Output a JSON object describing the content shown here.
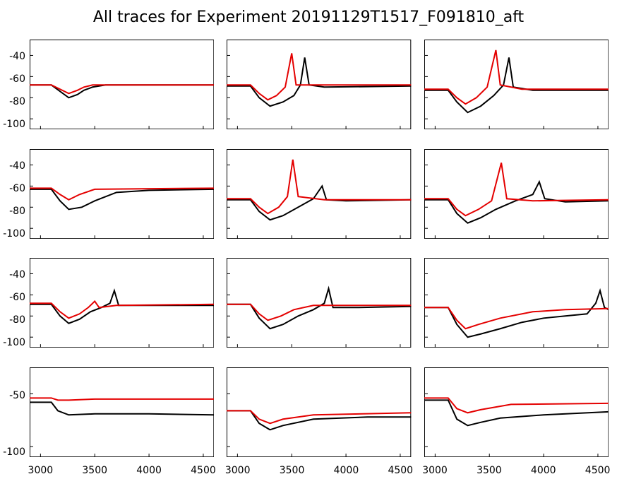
{
  "title": "All traces for Experiment 20191129T1517_F091810_aft",
  "title_fontsize": 22,
  "background_color": "#ffffff",
  "axis_color": "#000000",
  "line_width": 2,
  "colors": {
    "trace_black": "#000000",
    "trace_red": "#e40000"
  },
  "grid": {
    "rows": 4,
    "cols": 3,
    "col_gap": 18,
    "row_gap": 18
  },
  "x_axis": {
    "lim": [
      2900,
      4600
    ],
    "ticks": [
      3000,
      3500,
      4000,
      4500
    ],
    "label_fontsize": 14,
    "show_for_rows": [
      3
    ]
  },
  "y_axis": {
    "show_for_cols": [
      0
    ],
    "label_fontsize": 14,
    "per_row": [
      {
        "lim": [
          -110,
          -25
        ],
        "ticks": [
          -40,
          -60,
          -80,
          -100
        ]
      },
      {
        "lim": [
          -110,
          -25
        ],
        "ticks": [
          -40,
          -60,
          -80,
          -100
        ]
      },
      {
        "lim": [
          -110,
          -25
        ],
        "ticks": [
          -40,
          -60,
          -80,
          -100
        ]
      },
      {
        "lim": [
          -110,
          -25
        ],
        "ticks": [
          -50,
          -100
        ]
      }
    ]
  },
  "panels": [
    {
      "row": 0,
      "col": 0,
      "black": [
        [
          2900,
          -68
        ],
        [
          3100,
          -68
        ],
        [
          3180,
          -74
        ],
        [
          3260,
          -80
        ],
        [
          3340,
          -77
        ],
        [
          3400,
          -73
        ],
        [
          3480,
          -70
        ],
        [
          3600,
          -68
        ],
        [
          4000,
          -68
        ],
        [
          4600,
          -68
        ]
      ],
      "red": [
        [
          2900,
          -68
        ],
        [
          3100,
          -68
        ],
        [
          3180,
          -72
        ],
        [
          3260,
          -76
        ],
        [
          3340,
          -73
        ],
        [
          3400,
          -70
        ],
        [
          3480,
          -68
        ],
        [
          3700,
          -68
        ],
        [
          4600,
          -68
        ]
      ]
    },
    {
      "row": 0,
      "col": 1,
      "black": [
        [
          2900,
          -69
        ],
        [
          3120,
          -69
        ],
        [
          3200,
          -80
        ],
        [
          3300,
          -88
        ],
        [
          3420,
          -84
        ],
        [
          3520,
          -78
        ],
        [
          3580,
          -68
        ],
        [
          3620,
          -42
        ],
        [
          3660,
          -68
        ],
        [
          3800,
          -70
        ],
        [
          4600,
          -69
        ]
      ],
      "red": [
        [
          2900,
          -68
        ],
        [
          3120,
          -68
        ],
        [
          3200,
          -76
        ],
        [
          3280,
          -82
        ],
        [
          3360,
          -78
        ],
        [
          3440,
          -70
        ],
        [
          3500,
          -38
        ],
        [
          3540,
          -68
        ],
        [
          3700,
          -68
        ],
        [
          4600,
          -68
        ]
      ]
    },
    {
      "row": 0,
      "col": 2,
      "black": [
        [
          2900,
          -73
        ],
        [
          3120,
          -73
        ],
        [
          3200,
          -84
        ],
        [
          3300,
          -94
        ],
        [
          3420,
          -88
        ],
        [
          3540,
          -78
        ],
        [
          3630,
          -68
        ],
        [
          3680,
          -42
        ],
        [
          3720,
          -70
        ],
        [
          3900,
          -73
        ],
        [
          4600,
          -73
        ]
      ],
      "red": [
        [
          2900,
          -72
        ],
        [
          3120,
          -72
        ],
        [
          3200,
          -80
        ],
        [
          3280,
          -86
        ],
        [
          3380,
          -80
        ],
        [
          3480,
          -70
        ],
        [
          3560,
          -35
        ],
        [
          3600,
          -68
        ],
        [
          3800,
          -72
        ],
        [
          4600,
          -72
        ]
      ]
    },
    {
      "row": 1,
      "col": 0,
      "black": [
        [
          2900,
          -63
        ],
        [
          3100,
          -63
        ],
        [
          3180,
          -74
        ],
        [
          3260,
          -82
        ],
        [
          3380,
          -80
        ],
        [
          3500,
          -74
        ],
        [
          3700,
          -66
        ],
        [
          4000,
          -64
        ],
        [
          4600,
          -63
        ]
      ],
      "red": [
        [
          2900,
          -62
        ],
        [
          3100,
          -62
        ],
        [
          3180,
          -68
        ],
        [
          3260,
          -73
        ],
        [
          3360,
          -68
        ],
        [
          3500,
          -63
        ],
        [
          4600,
          -62
        ]
      ]
    },
    {
      "row": 1,
      "col": 1,
      "black": [
        [
          2900,
          -73
        ],
        [
          3120,
          -73
        ],
        [
          3200,
          -84
        ],
        [
          3300,
          -92
        ],
        [
          3420,
          -88
        ],
        [
          3560,
          -80
        ],
        [
          3700,
          -72
        ],
        [
          3780,
          -60
        ],
        [
          3820,
          -73
        ],
        [
          4000,
          -74
        ],
        [
          4600,
          -73
        ]
      ],
      "red": [
        [
          2900,
          -72
        ],
        [
          3120,
          -72
        ],
        [
          3200,
          -80
        ],
        [
          3280,
          -86
        ],
        [
          3380,
          -80
        ],
        [
          3460,
          -70
        ],
        [
          3510,
          -35
        ],
        [
          3560,
          -70
        ],
        [
          3800,
          -73
        ],
        [
          4600,
          -73
        ]
      ]
    },
    {
      "row": 1,
      "col": 2,
      "black": [
        [
          2900,
          -73
        ],
        [
          3120,
          -73
        ],
        [
          3200,
          -86
        ],
        [
          3300,
          -95
        ],
        [
          3420,
          -90
        ],
        [
          3560,
          -82
        ],
        [
          3740,
          -74
        ],
        [
          3900,
          -68
        ],
        [
          3960,
          -56
        ],
        [
          4010,
          -72
        ],
        [
          4200,
          -75
        ],
        [
          4600,
          -74
        ]
      ],
      "red": [
        [
          2900,
          -72
        ],
        [
          3120,
          -72
        ],
        [
          3200,
          -82
        ],
        [
          3280,
          -88
        ],
        [
          3400,
          -82
        ],
        [
          3520,
          -74
        ],
        [
          3610,
          -38
        ],
        [
          3660,
          -72
        ],
        [
          3900,
          -74
        ],
        [
          4600,
          -73
        ]
      ]
    },
    {
      "row": 2,
      "col": 0,
      "black": [
        [
          2900,
          -69
        ],
        [
          3100,
          -69
        ],
        [
          3180,
          -80
        ],
        [
          3260,
          -87
        ],
        [
          3360,
          -83
        ],
        [
          3460,
          -76
        ],
        [
          3560,
          -72
        ],
        [
          3640,
          -68
        ],
        [
          3680,
          -56
        ],
        [
          3720,
          -70
        ],
        [
          3900,
          -70
        ],
        [
          4600,
          -70
        ]
      ],
      "red": [
        [
          2900,
          -68
        ],
        [
          3100,
          -68
        ],
        [
          3180,
          -76
        ],
        [
          3260,
          -82
        ],
        [
          3360,
          -78
        ],
        [
          3440,
          -72
        ],
        [
          3500,
          -66
        ],
        [
          3540,
          -72
        ],
        [
          3700,
          -70
        ],
        [
          4600,
          -69
        ]
      ]
    },
    {
      "row": 2,
      "col": 1,
      "black": [
        [
          2900,
          -69
        ],
        [
          3120,
          -69
        ],
        [
          3200,
          -82
        ],
        [
          3300,
          -92
        ],
        [
          3420,
          -88
        ],
        [
          3560,
          -80
        ],
        [
          3700,
          -74
        ],
        [
          3800,
          -68
        ],
        [
          3840,
          -54
        ],
        [
          3880,
          -72
        ],
        [
          4100,
          -72
        ],
        [
          4600,
          -71
        ]
      ],
      "red": [
        [
          2900,
          -69
        ],
        [
          3120,
          -69
        ],
        [
          3200,
          -78
        ],
        [
          3280,
          -84
        ],
        [
          3400,
          -80
        ],
        [
          3520,
          -74
        ],
        [
          3700,
          -70
        ],
        [
          4000,
          -70
        ],
        [
          4600,
          -70
        ]
      ]
    },
    {
      "row": 2,
      "col": 2,
      "black": [
        [
          2900,
          -72
        ],
        [
          3120,
          -72
        ],
        [
          3200,
          -88
        ],
        [
          3300,
          -100
        ],
        [
          3420,
          -97
        ],
        [
          3600,
          -92
        ],
        [
          3800,
          -86
        ],
        [
          4000,
          -82
        ],
        [
          4200,
          -80
        ],
        [
          4400,
          -78
        ],
        [
          4480,
          -68
        ],
        [
          4520,
          -56
        ],
        [
          4560,
          -72
        ],
        [
          4600,
          -74
        ]
      ],
      "red": [
        [
          2900,
          -72
        ],
        [
          3120,
          -72
        ],
        [
          3200,
          -84
        ],
        [
          3280,
          -92
        ],
        [
          3400,
          -88
        ],
        [
          3600,
          -82
        ],
        [
          3900,
          -76
        ],
        [
          4200,
          -74
        ],
        [
          4600,
          -73
        ]
      ]
    },
    {
      "row": 3,
      "col": 0,
      "black": [
        [
          2900,
          -58
        ],
        [
          3100,
          -58
        ],
        [
          3160,
          -66
        ],
        [
          3260,
          -70
        ],
        [
          3500,
          -69
        ],
        [
          4000,
          -69
        ],
        [
          4600,
          -70
        ]
      ],
      "red": [
        [
          2900,
          -54
        ],
        [
          3100,
          -54
        ],
        [
          3160,
          -56
        ],
        [
          3260,
          -56
        ],
        [
          3500,
          -55
        ],
        [
          4600,
          -55
        ]
      ]
    },
    {
      "row": 3,
      "col": 1,
      "black": [
        [
          2900,
          -66
        ],
        [
          3120,
          -66
        ],
        [
          3200,
          -78
        ],
        [
          3300,
          -84
        ],
        [
          3420,
          -80
        ],
        [
          3700,
          -74
        ],
        [
          4200,
          -72
        ],
        [
          4600,
          -72
        ]
      ],
      "red": [
        [
          2900,
          -66
        ],
        [
          3120,
          -66
        ],
        [
          3200,
          -74
        ],
        [
          3300,
          -78
        ],
        [
          3420,
          -74
        ],
        [
          3700,
          -70
        ],
        [
          4600,
          -68
        ]
      ]
    },
    {
      "row": 3,
      "col": 2,
      "black": [
        [
          2900,
          -56
        ],
        [
          3120,
          -56
        ],
        [
          3200,
          -74
        ],
        [
          3300,
          -80
        ],
        [
          3420,
          -77
        ],
        [
          3600,
          -73
        ],
        [
          4000,
          -70
        ],
        [
          4600,
          -67
        ]
      ],
      "red": [
        [
          2900,
          -54
        ],
        [
          3120,
          -54
        ],
        [
          3200,
          -64
        ],
        [
          3300,
          -68
        ],
        [
          3420,
          -65
        ],
        [
          3700,
          -60
        ],
        [
          4600,
          -59
        ]
      ]
    }
  ]
}
